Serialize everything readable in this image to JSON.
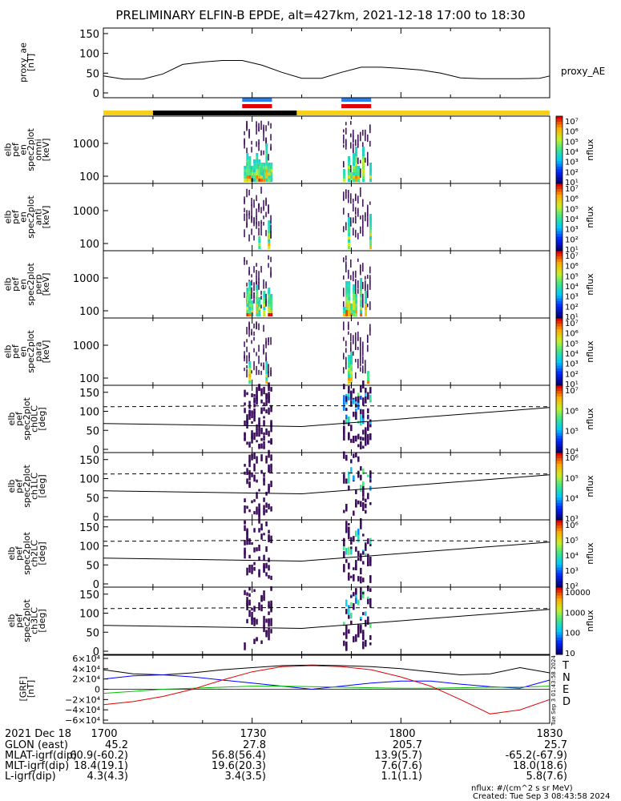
{
  "title": "PRELIMINARY ELFIN-B EPDE, alt=427km, 2021-12-18 17:00 to 18:30",
  "ae_panel": {
    "ylabel_lines": [
      "proxy_ae",
      "[nT]"
    ],
    "yticks": [
      "0",
      "50",
      "100",
      "150"
    ],
    "legend": "proxy_AE"
  },
  "spec_panels": [
    {
      "ylabel_lines": [
        "elb",
        "pef",
        "en",
        "spec2plot",
        "omni",
        "[keV]"
      ],
      "yticks": [
        "100",
        "1000"
      ],
      "cb_ticks": [
        "10⁷",
        "10⁶",
        "10⁵",
        "10⁴",
        "10³",
        "10²",
        "10¹"
      ],
      "cb_label": "nflux"
    },
    {
      "ylabel_lines": [
        "elb",
        "pef",
        "en",
        "spec2plot",
        "anti",
        "[keV]"
      ],
      "yticks": [
        "100",
        "1000"
      ],
      "cb_ticks": [
        "10⁷",
        "10⁶",
        "10⁵",
        "10⁴",
        "10³",
        "10²",
        "10¹"
      ],
      "cb_label": "nflux"
    },
    {
      "ylabel_lines": [
        "elb",
        "pef",
        "en",
        "spec2plot",
        "perp",
        "[keV]"
      ],
      "yticks": [
        "100",
        "1000"
      ],
      "cb_ticks": [
        "10⁷",
        "10⁶",
        "10⁵",
        "10⁴",
        "10³",
        "10²",
        "10¹"
      ],
      "cb_label": "nflux"
    },
    {
      "ylabel_lines": [
        "elb",
        "pef",
        "en",
        "spec2plot",
        "para",
        "[keV]"
      ],
      "yticks": [
        "100",
        "1000"
      ],
      "cb_ticks": [
        "10⁷",
        "10⁶",
        "10⁵",
        "10⁴",
        "10³",
        "10²",
        "10¹"
      ],
      "cb_label": "nflux"
    }
  ],
  "pa_panels": [
    {
      "ylabel_lines": [
        "elb",
        "pef",
        "spec2plot",
        "ch0LC",
        "[deg]"
      ],
      "yticks": [
        "0",
        "50",
        "100",
        "150"
      ],
      "cb_ticks": [
        "10⁷",
        "10⁶",
        "10⁵",
        "10⁴"
      ],
      "cb_label": "nflux"
    },
    {
      "ylabel_lines": [
        "elb",
        "pef",
        "spec2plot",
        "ch1LC",
        "[deg]"
      ],
      "yticks": [
        "0",
        "50",
        "100",
        "150"
      ],
      "cb_ticks": [
        "10⁶",
        "10⁵",
        "10⁴",
        "10³"
      ],
      "cb_label": "nflux"
    },
    {
      "ylabel_lines": [
        "elb",
        "pef",
        "spec2plot",
        "ch2LC",
        "[deg]"
      ],
      "yticks": [
        "0",
        "50",
        "100",
        "150"
      ],
      "cb_ticks": [
        "10⁶",
        "10⁵",
        "10⁴",
        "10³",
        "10²"
      ],
      "cb_label": "nflux"
    },
    {
      "ylabel_lines": [
        "elb",
        "pef",
        "spec2plot",
        "ch3LC",
        "[deg]"
      ],
      "yticks": [
        "0",
        "50",
        "100",
        "150"
      ],
      "cb_ticks": [
        "10000",
        "1000",
        "100",
        "10"
      ],
      "cb_label": "nflux"
    }
  ],
  "b_panel": {
    "ylabel_lines": [
      "[GRF]",
      "[nT]"
    ],
    "yticks": [
      "6×10⁴",
      "4×10⁴",
      "2×10⁴",
      "0",
      "−2×10⁴",
      "−4×10⁴",
      "−6×10⁴"
    ],
    "legend": [
      {
        "label": "T",
        "color": "#000000"
      },
      {
        "label": "N",
        "color": "#0000ff"
      },
      {
        "label": "E",
        "color": "#00c000"
      },
      {
        "label": "D",
        "color": "#e00000"
      }
    ]
  },
  "side_note": "Tue Sep 3 01:43:58 2024",
  "time_axis": {
    "ticks": [
      "1700",
      "1730",
      "1800",
      "1830"
    ]
  },
  "ephemeris_rows": [
    {
      "label": "2021 Dec 18",
      "values": [
        "1700",
        "1730",
        "1800",
        "1830"
      ]
    },
    {
      "label": "GLON (east)",
      "values": [
        "45.2",
        "27.8",
        "205.7",
        "25.7"
      ]
    },
    {
      "label": "MLAT-igrf(dip)",
      "values": [
        "60.9(-60.2)",
        "56.8(56.4)",
        "13.9(5.7)",
        "-65.2(-67.9)"
      ]
    },
    {
      "label": "MLT-igrf(dip)",
      "values": [
        "18.4(19.1)",
        "19.6(20.3)",
        "7.6(7.6)",
        "18.0(18.6)"
      ]
    },
    {
      "label": "L-igrf(dip)",
      "values": [
        "4.3(4.3)",
        "3.4(3.5)",
        "1.1(1.1)",
        "5.8(7.6)"
      ]
    }
  ],
  "footer": {
    "units": "nflux: #/(cm^2 s sr MeV)",
    "created": "Created: Tue Sep  3 08:43:58 2024"
  },
  "chart_data": {
    "type": "line",
    "xlim": [
      "17:00",
      "18:30"
    ],
    "proxy_ae": {
      "name": "proxy_AE",
      "ylim": [
        0,
        160
      ],
      "x": [
        "17:00",
        "17:04",
        "17:08",
        "17:12",
        "17:16",
        "17:20",
        "17:24",
        "17:28",
        "17:32",
        "17:36",
        "17:40",
        "17:44",
        "17:48",
        "17:52",
        "17:56",
        "18:00",
        "18:04",
        "18:08",
        "18:12",
        "18:16",
        "18:20",
        "18:24",
        "18:28",
        "18:30"
      ],
      "values": [
        43,
        35,
        35,
        48,
        72,
        78,
        82,
        82,
        70,
        52,
        37,
        37,
        52,
        65,
        65,
        62,
        58,
        50,
        38,
        36,
        36,
        36,
        37,
        43
      ]
    },
    "science_intervals": [
      {
        "start": "17:28",
        "end": "17:34",
        "colors": [
          "#2a7ff0",
          "#e00000"
        ]
      },
      {
        "start": "17:48",
        "end": "17:54",
        "colors": [
          "#2a7ff0",
          "#e00000"
        ]
      }
    ],
    "region_bar": [
      {
        "start": "17:00",
        "end": "17:10",
        "color": "#f7d117"
      },
      {
        "start": "17:10",
        "end": "17:39",
        "color": "#000000"
      },
      {
        "start": "17:39",
        "end": "18:30",
        "color": "#f7d117"
      }
    ],
    "b_grf": {
      "ylim": [
        -60000,
        60000
      ],
      "x": [
        "17:00",
        "17:06",
        "17:12",
        "17:18",
        "17:24",
        "17:30",
        "17:36",
        "17:42",
        "17:48",
        "17:54",
        "18:00",
        "18:06",
        "18:12",
        "18:18",
        "18:24",
        "18:30"
      ],
      "series": [
        {
          "name": "T",
          "values": [
            38000,
            30000,
            28000,
            32000,
            38000,
            42000,
            46000,
            47000,
            46000,
            44000,
            40000,
            34000,
            28000,
            30000,
            42000,
            32000
          ]
        },
        {
          "name": "N",
          "values": [
            20000,
            26000,
            28000,
            24000,
            18000,
            12000,
            6000,
            0,
            6000,
            12000,
            16000,
            16000,
            10000,
            5000,
            2000,
            18000
          ]
        },
        {
          "name": "E",
          "values": [
            -8000,
            -4000,
            0,
            2000,
            4000,
            6000,
            6000,
            5000,
            4000,
            3000,
            2000,
            2000,
            3000,
            4000,
            4000,
            6000
          ]
        },
        {
          "name": "D",
          "values": [
            -30000,
            -24000,
            -14000,
            0,
            18000,
            34000,
            44000,
            46000,
            44000,
            38000,
            24000,
            6000,
            -20000,
            -48000,
            -40000,
            -20000
          ]
        }
      ]
    },
    "pa_loss_cone_deg": [
      {
        "x": [
          "17:00",
          "17:40",
          "18:30"
        ],
        "solid": [
          68,
          60,
          110
        ],
        "dashed": [
          112,
          115,
          112
        ]
      }
    ]
  }
}
